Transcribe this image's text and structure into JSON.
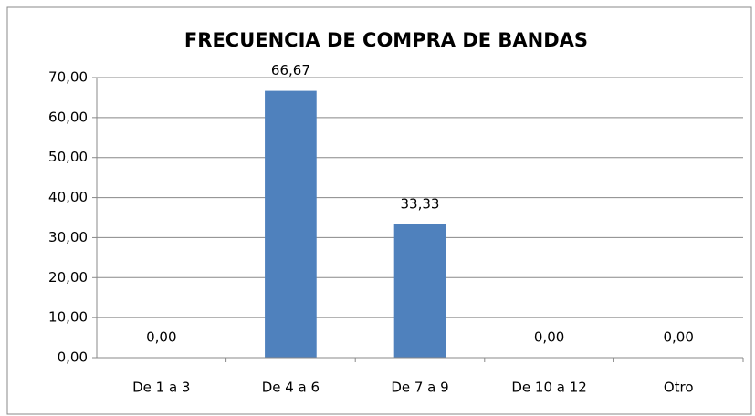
{
  "chart_data": {
    "type": "bar",
    "title": "FRECUENCIA DE COMPRA DE BANDAS",
    "categories": [
      "De 1 a 3",
      "De 4 a 6",
      "De 7 a 9",
      "De 10 a 12",
      "Otro"
    ],
    "values": [
      0,
      66.67,
      33.33,
      0,
      0
    ],
    "value_labels": [
      "0,00",
      "66,67",
      "33,33",
      "0,00",
      "0,00"
    ],
    "color": "#4f81bd",
    "ylim": [
      0,
      70
    ],
    "yticks": [
      {
        "value": 0,
        "label": "0,00"
      },
      {
        "value": 10,
        "label": "10,00"
      },
      {
        "value": 20,
        "label": "20,00"
      },
      {
        "value": 30,
        "label": "30,00"
      },
      {
        "value": 40,
        "label": "40,00"
      },
      {
        "value": 50,
        "label": "50,00"
      },
      {
        "value": 60,
        "label": "60,00"
      },
      {
        "value": 70,
        "label": "70,00"
      }
    ],
    "grid": true
  }
}
